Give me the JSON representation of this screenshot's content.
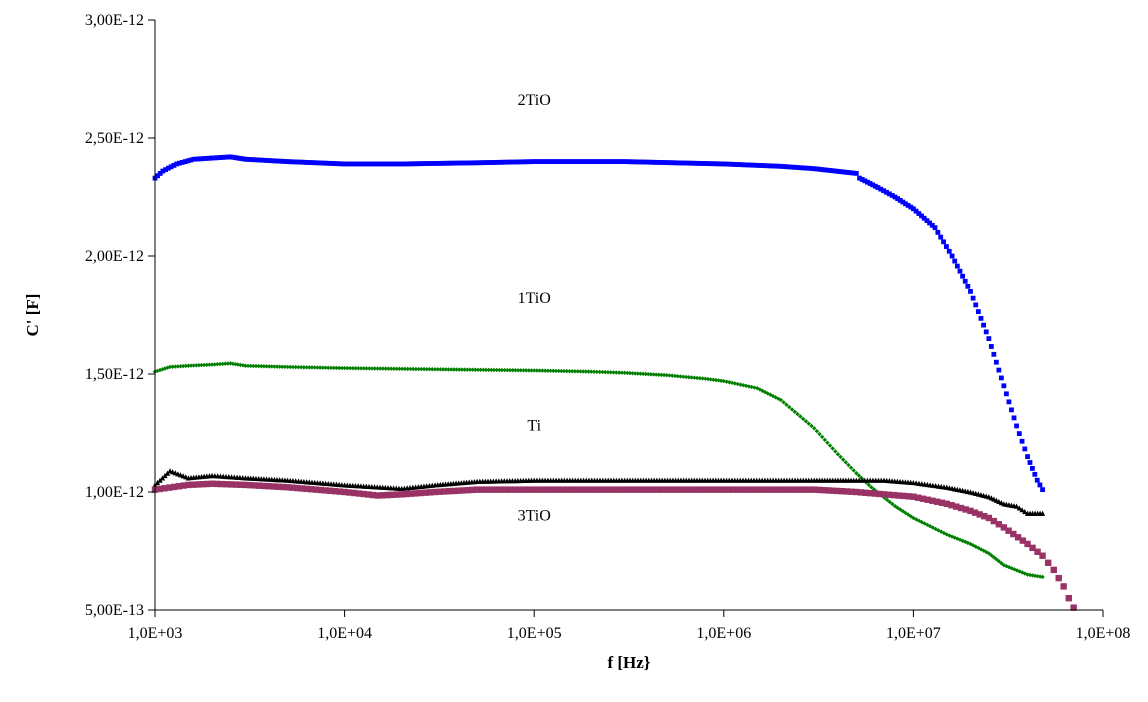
{
  "chart_data": {
    "type": "scatter",
    "title": "",
    "xlabel": "f [Hz}",
    "ylabel": "C' [F]",
    "x_scale": "log",
    "xlim": [
      1000,
      100000000
    ],
    "ylim": [
      5e-13,
      3e-12
    ],
    "x_tick_values": [
      1000,
      10000,
      100000,
      1000000,
      10000000,
      100000000
    ],
    "x_tick_labels": [
      "1,0E+03",
      "1,0E+04",
      "1,0E+05",
      "1,0E+06",
      "1,0E+07",
      "1,0E+08"
    ],
    "y_tick_values": [
      5e-13,
      1e-12,
      1.5e-12,
      2e-12,
      2.5e-12,
      3e-12
    ],
    "y_tick_labels": [
      "5,00E-13",
      "1,00E-12",
      "1,50E-12",
      "2,00E-12",
      "2,50E-12",
      "3,00E-12"
    ],
    "grid": false,
    "legend": "none",
    "series": [
      {
        "name": "2TiO",
        "color": "#0000ff",
        "marker": "square",
        "points": [
          [
            1000,
            2.33e-12
          ],
          [
            1100,
            2.36e-12
          ],
          [
            1300,
            2.39e-12
          ],
          [
            1600,
            2.41e-12
          ],
          [
            2000,
            2.415e-12
          ],
          [
            2500,
            2.42e-12
          ],
          [
            3000,
            2.41e-12
          ],
          [
            5000,
            2.4e-12
          ],
          [
            10000,
            2.39e-12
          ],
          [
            20000,
            2.39e-12
          ],
          [
            50000,
            2.395e-12
          ],
          [
            100000,
            2.4e-12
          ],
          [
            300000,
            2.4e-12
          ],
          [
            1000000,
            2.39e-12
          ],
          [
            2000000,
            2.38e-12
          ],
          [
            3000000,
            2.37e-12
          ],
          [
            5000000,
            2.35e-12
          ],
          [
            5200000,
            2.33e-12
          ],
          [
            6500000,
            2.29e-12
          ],
          [
            8000000,
            2.25e-12
          ],
          [
            10000000,
            2.2e-12
          ],
          [
            13000000,
            2.12e-12
          ],
          [
            16000000,
            2e-12
          ],
          [
            20000000,
            1.85e-12
          ],
          [
            25000000,
            1.65e-12
          ],
          [
            30000000,
            1.45e-12
          ],
          [
            35000000,
            1.28e-12
          ],
          [
            40000000,
            1.15e-12
          ],
          [
            45000000,
            1.05e-12
          ],
          [
            48000000,
            1.01e-12
          ]
        ]
      },
      {
        "name": "1TiO",
        "color": "#008000",
        "marker": "diamond",
        "points": [
          [
            1000,
            1.51e-12
          ],
          [
            1200,
            1.53e-12
          ],
          [
            1500,
            1.535e-12
          ],
          [
            2000,
            1.54e-12
          ],
          [
            2500,
            1.545e-12
          ],
          [
            3000,
            1.535e-12
          ],
          [
            5000,
            1.53e-12
          ],
          [
            10000,
            1.525e-12
          ],
          [
            30000,
            1.52e-12
          ],
          [
            100000,
            1.515e-12
          ],
          [
            200000,
            1.51e-12
          ],
          [
            300000,
            1.505e-12
          ],
          [
            500000,
            1.495e-12
          ],
          [
            800000,
            1.48e-12
          ],
          [
            1000000,
            1.47e-12
          ],
          [
            1500000,
            1.44e-12
          ],
          [
            2000000,
            1.39e-12
          ],
          [
            3000000,
            1.27e-12
          ],
          [
            4000000,
            1.16e-12
          ],
          [
            5000000,
            1.08e-12
          ],
          [
            6000000,
            1.02e-12
          ],
          [
            8000000,
            9.4e-13
          ],
          [
            10000000,
            8.9e-13
          ],
          [
            15000000,
            8.2e-13
          ],
          [
            20000000,
            7.8e-13
          ],
          [
            25000000,
            7.4e-13
          ],
          [
            30000000,
            6.9e-13
          ],
          [
            40000000,
            6.5e-13
          ],
          [
            48000000,
            6.4e-13
          ]
        ]
      },
      {
        "name": "Ti",
        "color": "#000000",
        "marker": "triangle",
        "points": [
          [
            1000,
            1.03e-12
          ],
          [
            1200,
            1.09e-12
          ],
          [
            1500,
            1.06e-12
          ],
          [
            2000,
            1.07e-12
          ],
          [
            3000,
            1.06e-12
          ],
          [
            5000,
            1.05e-12
          ],
          [
            10000,
            1.03e-12
          ],
          [
            20000,
            1.015e-12
          ],
          [
            30000,
            1.03e-12
          ],
          [
            50000,
            1.045e-12
          ],
          [
            100000,
            1.05e-12
          ],
          [
            300000,
            1.05e-12
          ],
          [
            1000000,
            1.05e-12
          ],
          [
            3000000,
            1.05e-12
          ],
          [
            5000000,
            1.05e-12
          ],
          [
            7000000,
            1.05e-12
          ],
          [
            10000000,
            1.04e-12
          ],
          [
            15000000,
            1.02e-12
          ],
          [
            20000000,
            1e-12
          ],
          [
            25000000,
            9.8e-13
          ],
          [
            30000000,
            9.5e-13
          ],
          [
            35000000,
            9.4e-13
          ],
          [
            40000000,
            9.1e-13
          ],
          [
            48000000,
            9.1e-13
          ]
        ]
      },
      {
        "name": "3TiO",
        "color": "#993366",
        "marker": "square",
        "points": [
          [
            1000,
            1.01e-12
          ],
          [
            1500,
            1.03e-12
          ],
          [
            2000,
            1.035e-12
          ],
          [
            3000,
            1.03e-12
          ],
          [
            5000,
            1.02e-12
          ],
          [
            10000,
            1e-12
          ],
          [
            15000,
            9.85e-13
          ],
          [
            20000,
            9.9e-13
          ],
          [
            30000,
            1e-12
          ],
          [
            50000,
            1.01e-12
          ],
          [
            100000,
            1.01e-12
          ],
          [
            300000,
            1.01e-12
          ],
          [
            1000000,
            1.01e-12
          ],
          [
            3000000,
            1.01e-12
          ],
          [
            5000000,
            1e-12
          ],
          [
            7000000,
            9.9e-13
          ],
          [
            10000000,
            9.8e-13
          ],
          [
            15000000,
            9.5e-13
          ],
          [
            20000000,
            9.2e-13
          ],
          [
            25000000,
            8.9e-13
          ],
          [
            30000000,
            8.5e-13
          ],
          [
            40000000,
            7.8e-13
          ],
          [
            48000000,
            7.3e-13
          ],
          [
            55000000,
            6.7e-13
          ],
          [
            62000000,
            6e-13
          ],
          [
            66000000,
            5.5e-13
          ],
          [
            70000000,
            5.1e-13
          ]
        ]
      }
    ],
    "annotations": [
      {
        "text": "2TiO",
        "x": 100000,
        "y": 2.64e-12
      },
      {
        "text": "1TiO",
        "x": 100000,
        "y": 1.8e-12
      },
      {
        "text": "Ti",
        "x": 100000,
        "y": 1.26e-12
      },
      {
        "text": "3TiO",
        "x": 100000,
        "y": 8.8e-13
      }
    ]
  }
}
